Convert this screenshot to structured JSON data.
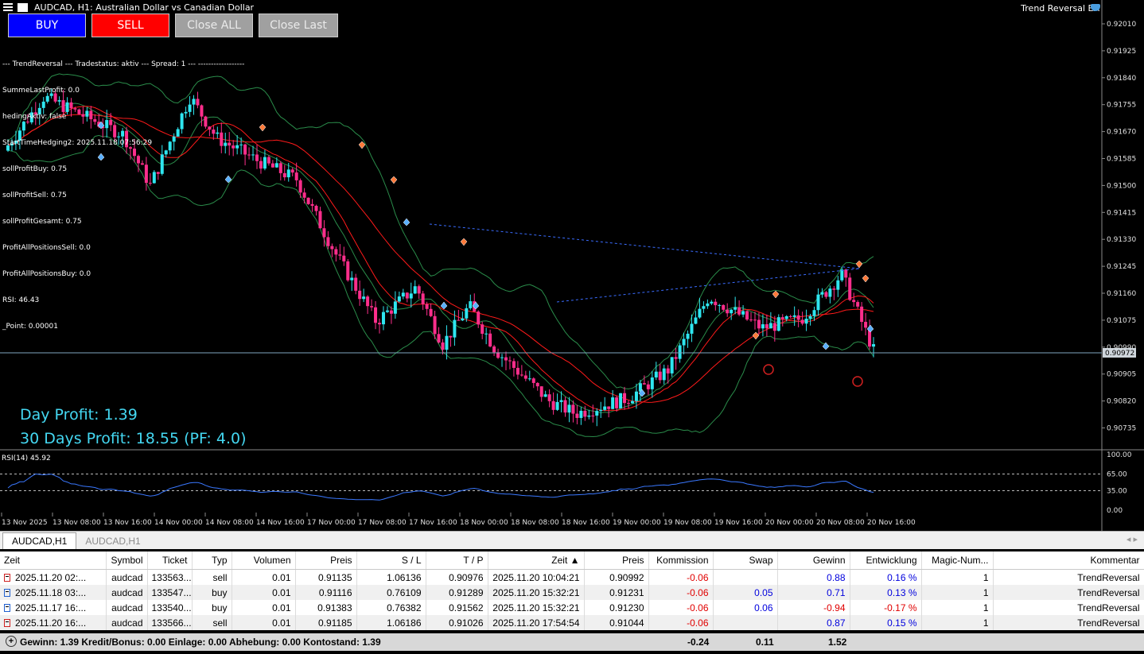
{
  "window": {
    "title": "AUDCAD, H1:  Australian Dollar vs Canadian Dollar",
    "ea_name": "Trend Reversal EA"
  },
  "buttons": {
    "buy": "BUY",
    "sell": "SELL",
    "close_all": "Close ALL",
    "close_last": "Close Last"
  },
  "info_lines": [
    "--- TrendReversal --- Tradestatus: aktiv --- Spread: 1 --- ------------------",
    "SummeLastProfit: 0.0",
    "hedingAktiv: false",
    "StartTimeHedging2: 2025.11.18 07:56:29",
    "sollProfitBuy: 0.75",
    "sollProfitSell: 0.75",
    "sollProfitGesamt: 0.75",
    "ProfitAllPositionsSell: 0.0",
    "ProfitAllPositionsBuy: 0.0",
    "RSI: 46.43",
    "_Point: 0.00001"
  ],
  "profit": {
    "day": "Day Profit: 1.39",
    "thirty": "30 Days Profit: 18.55 (PF: 4.0)"
  },
  "price_axis": [
    "0.92010",
    "0.91925",
    "0.91840",
    "0.91755",
    "0.91670",
    "0.91585",
    "0.91500",
    "0.91415",
    "0.91330",
    "0.91245",
    "0.91160",
    "0.91075",
    "0.90990",
    "0.90905",
    "0.90820",
    "0.90735"
  ],
  "current_price": "0.90972",
  "rsi": {
    "label": "RSI(14) 45.92",
    "levels": [
      "100.00",
      "65.00",
      "35.00",
      "0.00"
    ]
  },
  "time_axis": [
    "13 Nov 2025",
    "13 Nov 08:00",
    "13 Nov 16:00",
    "14 Nov 00:00",
    "14 Nov 08:00",
    "14 Nov 16:00",
    "17 Nov 00:00",
    "17 Nov 08:00",
    "17 Nov 16:00",
    "18 Nov 00:00",
    "18 Nov 08:00",
    "18 Nov 16:00",
    "19 Nov 00:00",
    "19 Nov 08:00",
    "19 Nov 16:00",
    "20 Nov 00:00",
    "20 Nov 08:00",
    "20 Nov 16:00"
  ],
  "tabs": [
    "AUDCAD,H1",
    "AUDCAD,H1"
  ],
  "tab_nav": "◂ ▸",
  "table": {
    "headers": [
      "Zeit",
      "Symbol",
      "Ticket",
      "Typ",
      "Volumen",
      "Preis",
      "S / L",
      "T / P",
      "Zeit ▲",
      "Preis",
      "Kommission",
      "Swap",
      "Gewinn",
      "Entwicklung",
      "Magic-Num...",
      "Kommentar"
    ],
    "rows": [
      [
        "2025.11.20 02:...",
        "audcad",
        "133563...",
        "sell",
        "0.01",
        "0.91135",
        "1.06136",
        "0.90976",
        "2025.11.20 10:04:21",
        "0.90992",
        "-0.06",
        "",
        "0.88",
        "0.16 %",
        "1",
        "TrendReversal"
      ],
      [
        "2025.11.18 03:...",
        "audcad",
        "133547...",
        "buy",
        "0.01",
        "0.91116",
        "0.76109",
        "0.91289",
        "2025.11.20 15:32:21",
        "0.91231",
        "-0.06",
        "0.05",
        "0.71",
        "0.13 %",
        "1",
        "TrendReversal"
      ],
      [
        "2025.11.17 16:...",
        "audcad",
        "133540...",
        "buy",
        "0.01",
        "0.91383",
        "0.76382",
        "0.91562",
        "2025.11.20 15:32:21",
        "0.91230",
        "-0.06",
        "0.06",
        "-0.94",
        "-0.17 %",
        "1",
        "TrendReversal"
      ],
      [
        "2025.11.20 16:...",
        "audcad",
        "133566...",
        "sell",
        "0.01",
        "0.91185",
        "1.06186",
        "0.91026",
        "2025.11.20 17:54:54",
        "0.91044",
        "-0.06",
        "",
        "0.87",
        "0.15 %",
        "1",
        "TrendReversal"
      ]
    ]
  },
  "summary": {
    "text": "Gewinn: 1.39  Kredit/Bonus: 0.00  Einlage: 0.00  Abhebung: 0.00  Kontostand: 1.39",
    "kommission": "-0.24",
    "swap": "0.11",
    "gewinn": "1.52"
  },
  "colors": {
    "bull": "#2ee6f0",
    "bear": "#ff2e8c",
    "ma_red": "#ff1a1a",
    "bands": "#2a8c4a",
    "rsi_line": "#3a78ff",
    "profit_text": "#44d8f2"
  }
}
